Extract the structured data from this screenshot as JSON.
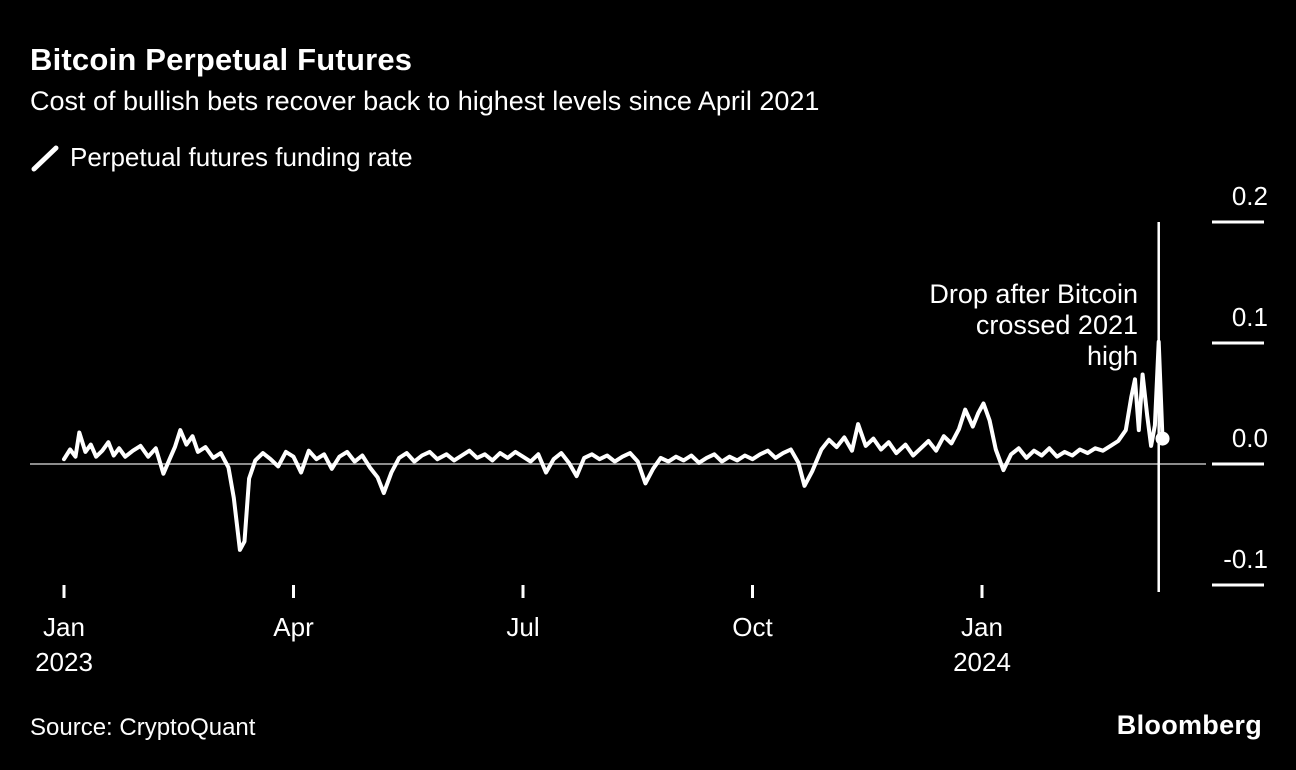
{
  "header": {
    "title": "Bitcoin Perpetual Futures",
    "subtitle": "Cost of bullish bets recover back to highest levels since April 2021"
  },
  "legend": {
    "label": "Perpetual futures funding rate",
    "series_color": "#ffffff"
  },
  "footer": {
    "source": "Source: CryptoQuant",
    "brand": "Bloomberg"
  },
  "colors": {
    "background": "#000000",
    "text": "#ffffff",
    "zero_line": "#8c8c8c",
    "series": "#ffffff"
  },
  "chart_data": {
    "type": "line",
    "title": "Bitcoin Perpetual Futures",
    "subtitle": "Cost of bullish bets recover back to highest levels since April 2021",
    "xlabel": "",
    "ylabel": "Perpetual futures funding rate",
    "ylim": [
      -0.13,
      0.22
    ],
    "grid": "zero-line-only",
    "legend_position": "top-left",
    "y_ticks": [
      {
        "label": "0.2",
        "v": 0.2
      },
      {
        "label": "0.1",
        "v": 0.1
      },
      {
        "label": "0.0",
        "v": 0.0
      },
      {
        "label": "-0.1",
        "v": -0.1
      }
    ],
    "x_ticks": [
      {
        "label": "Jan",
        "sublabel": "2023",
        "t": 0
      },
      {
        "label": "Apr",
        "t": 3
      },
      {
        "label": "Jul",
        "t": 6
      },
      {
        "label": "Oct",
        "t": 9
      },
      {
        "label": "Jan",
        "sublabel": "2024",
        "t": 12
      }
    ],
    "annotation": {
      "lines": [
        "Drop after Bitcoin",
        "crossed 2021",
        "high"
      ],
      "t": 14.31
    },
    "end_marker": {
      "t": 14.36,
      "v": 0.021
    },
    "zero_line_color": "#8c8c8c",
    "series": [
      {
        "name": "Perpetual futures funding rate",
        "color": "#ffffff",
        "points": [
          [
            0.0,
            0.004
          ],
          [
            0.08,
            0.012
          ],
          [
            0.15,
            0.006
          ],
          [
            0.2,
            0.026
          ],
          [
            0.28,
            0.01
          ],
          [
            0.35,
            0.016
          ],
          [
            0.42,
            0.006
          ],
          [
            0.5,
            0.011
          ],
          [
            0.58,
            0.018
          ],
          [
            0.65,
            0.007
          ],
          [
            0.72,
            0.013
          ],
          [
            0.8,
            0.006
          ],
          [
            0.9,
            0.011
          ],
          [
            1.0,
            0.015
          ],
          [
            1.1,
            0.006
          ],
          [
            1.2,
            0.013
          ],
          [
            1.3,
            -0.008
          ],
          [
            1.38,
            0.004
          ],
          [
            1.45,
            0.014
          ],
          [
            1.52,
            0.028
          ],
          [
            1.6,
            0.016
          ],
          [
            1.68,
            0.023
          ],
          [
            1.75,
            0.01
          ],
          [
            1.85,
            0.014
          ],
          [
            1.95,
            0.005
          ],
          [
            2.05,
            0.009
          ],
          [
            2.15,
            -0.003
          ],
          [
            2.22,
            -0.028
          ],
          [
            2.3,
            -0.071
          ],
          [
            2.36,
            -0.064
          ],
          [
            2.42,
            -0.012
          ],
          [
            2.5,
            0.003
          ],
          [
            2.6,
            0.009
          ],
          [
            2.7,
            0.004
          ],
          [
            2.8,
            -0.002
          ],
          [
            2.9,
            0.01
          ],
          [
            3.0,
            0.006
          ],
          [
            3.1,
            -0.007
          ],
          [
            3.2,
            0.011
          ],
          [
            3.3,
            0.004
          ],
          [
            3.4,
            0.008
          ],
          [
            3.5,
            -0.004
          ],
          [
            3.6,
            0.006
          ],
          [
            3.7,
            0.01
          ],
          [
            3.8,
            0.002
          ],
          [
            3.9,
            0.007
          ],
          [
            4.0,
            -0.003
          ],
          [
            4.1,
            -0.011
          ],
          [
            4.18,
            -0.024
          ],
          [
            4.28,
            -0.007
          ],
          [
            4.38,
            0.005
          ],
          [
            4.48,
            0.009
          ],
          [
            4.58,
            0.002
          ],
          [
            4.68,
            0.007
          ],
          [
            4.78,
            0.01
          ],
          [
            4.88,
            0.004
          ],
          [
            5.0,
            0.008
          ],
          [
            5.1,
            0.003
          ],
          [
            5.2,
            0.007
          ],
          [
            5.3,
            0.011
          ],
          [
            5.4,
            0.005
          ],
          [
            5.5,
            0.008
          ],
          [
            5.6,
            0.003
          ],
          [
            5.7,
            0.009
          ],
          [
            5.8,
            0.005
          ],
          [
            5.9,
            0.01
          ],
          [
            6.0,
            0.006
          ],
          [
            6.1,
            0.002
          ],
          [
            6.2,
            0.008
          ],
          [
            6.3,
            -0.007
          ],
          [
            6.4,
            0.004
          ],
          [
            6.5,
            0.009
          ],
          [
            6.6,
            0.001
          ],
          [
            6.7,
            -0.01
          ],
          [
            6.8,
            0.005
          ],
          [
            6.9,
            0.008
          ],
          [
            7.0,
            0.004
          ],
          [
            7.1,
            0.007
          ],
          [
            7.2,
            0.002
          ],
          [
            7.3,
            0.006
          ],
          [
            7.4,
            0.009
          ],
          [
            7.5,
            0.002
          ],
          [
            7.6,
            -0.016
          ],
          [
            7.7,
            -0.004
          ],
          [
            7.8,
            0.005
          ],
          [
            7.9,
            0.002
          ],
          [
            8.0,
            0.006
          ],
          [
            8.1,
            0.003
          ],
          [
            8.2,
            0.007
          ],
          [
            8.3,
            0.001
          ],
          [
            8.4,
            0.005
          ],
          [
            8.5,
            0.008
          ],
          [
            8.6,
            0.002
          ],
          [
            8.7,
            0.006
          ],
          [
            8.8,
            0.003
          ],
          [
            8.9,
            0.007
          ],
          [
            9.0,
            0.004
          ],
          [
            9.1,
            0.008
          ],
          [
            9.2,
            0.011
          ],
          [
            9.3,
            0.005
          ],
          [
            9.4,
            0.009
          ],
          [
            9.5,
            0.012
          ],
          [
            9.6,
            0.001
          ],
          [
            9.68,
            -0.018
          ],
          [
            9.78,
            -0.006
          ],
          [
            9.9,
            0.012
          ],
          [
            10.0,
            0.02
          ],
          [
            10.1,
            0.014
          ],
          [
            10.2,
            0.022
          ],
          [
            10.3,
            0.011
          ],
          [
            10.38,
            0.033
          ],
          [
            10.48,
            0.015
          ],
          [
            10.58,
            0.021
          ],
          [
            10.68,
            0.012
          ],
          [
            10.78,
            0.018
          ],
          [
            10.88,
            0.009
          ],
          [
            11.0,
            0.016
          ],
          [
            11.1,
            0.007
          ],
          [
            11.2,
            0.013
          ],
          [
            11.3,
            0.019
          ],
          [
            11.4,
            0.011
          ],
          [
            11.5,
            0.023
          ],
          [
            11.6,
            0.017
          ],
          [
            11.7,
            0.029
          ],
          [
            11.78,
            0.045
          ],
          [
            11.88,
            0.031
          ],
          [
            11.95,
            0.042
          ],
          [
            12.02,
            0.05
          ],
          [
            12.1,
            0.036
          ],
          [
            12.18,
            0.012
          ],
          [
            12.28,
            -0.005
          ],
          [
            12.38,
            0.008
          ],
          [
            12.48,
            0.013
          ],
          [
            12.58,
            0.005
          ],
          [
            12.68,
            0.011
          ],
          [
            12.78,
            0.007
          ],
          [
            12.88,
            0.013
          ],
          [
            12.98,
            0.006
          ],
          [
            13.08,
            0.01
          ],
          [
            13.18,
            0.007
          ],
          [
            13.28,
            0.012
          ],
          [
            13.38,
            0.009
          ],
          [
            13.48,
            0.013
          ],
          [
            13.58,
            0.011
          ],
          [
            13.68,
            0.015
          ],
          [
            13.78,
            0.019
          ],
          [
            13.88,
            0.028
          ],
          [
            13.95,
            0.055
          ],
          [
            14.0,
            0.07
          ],
          [
            14.05,
            0.028
          ],
          [
            14.1,
            0.074
          ],
          [
            14.16,
            0.04
          ],
          [
            14.21,
            0.015
          ],
          [
            14.26,
            0.032
          ],
          [
            14.31,
            0.101
          ],
          [
            14.36,
            0.021
          ]
        ]
      }
    ]
  }
}
